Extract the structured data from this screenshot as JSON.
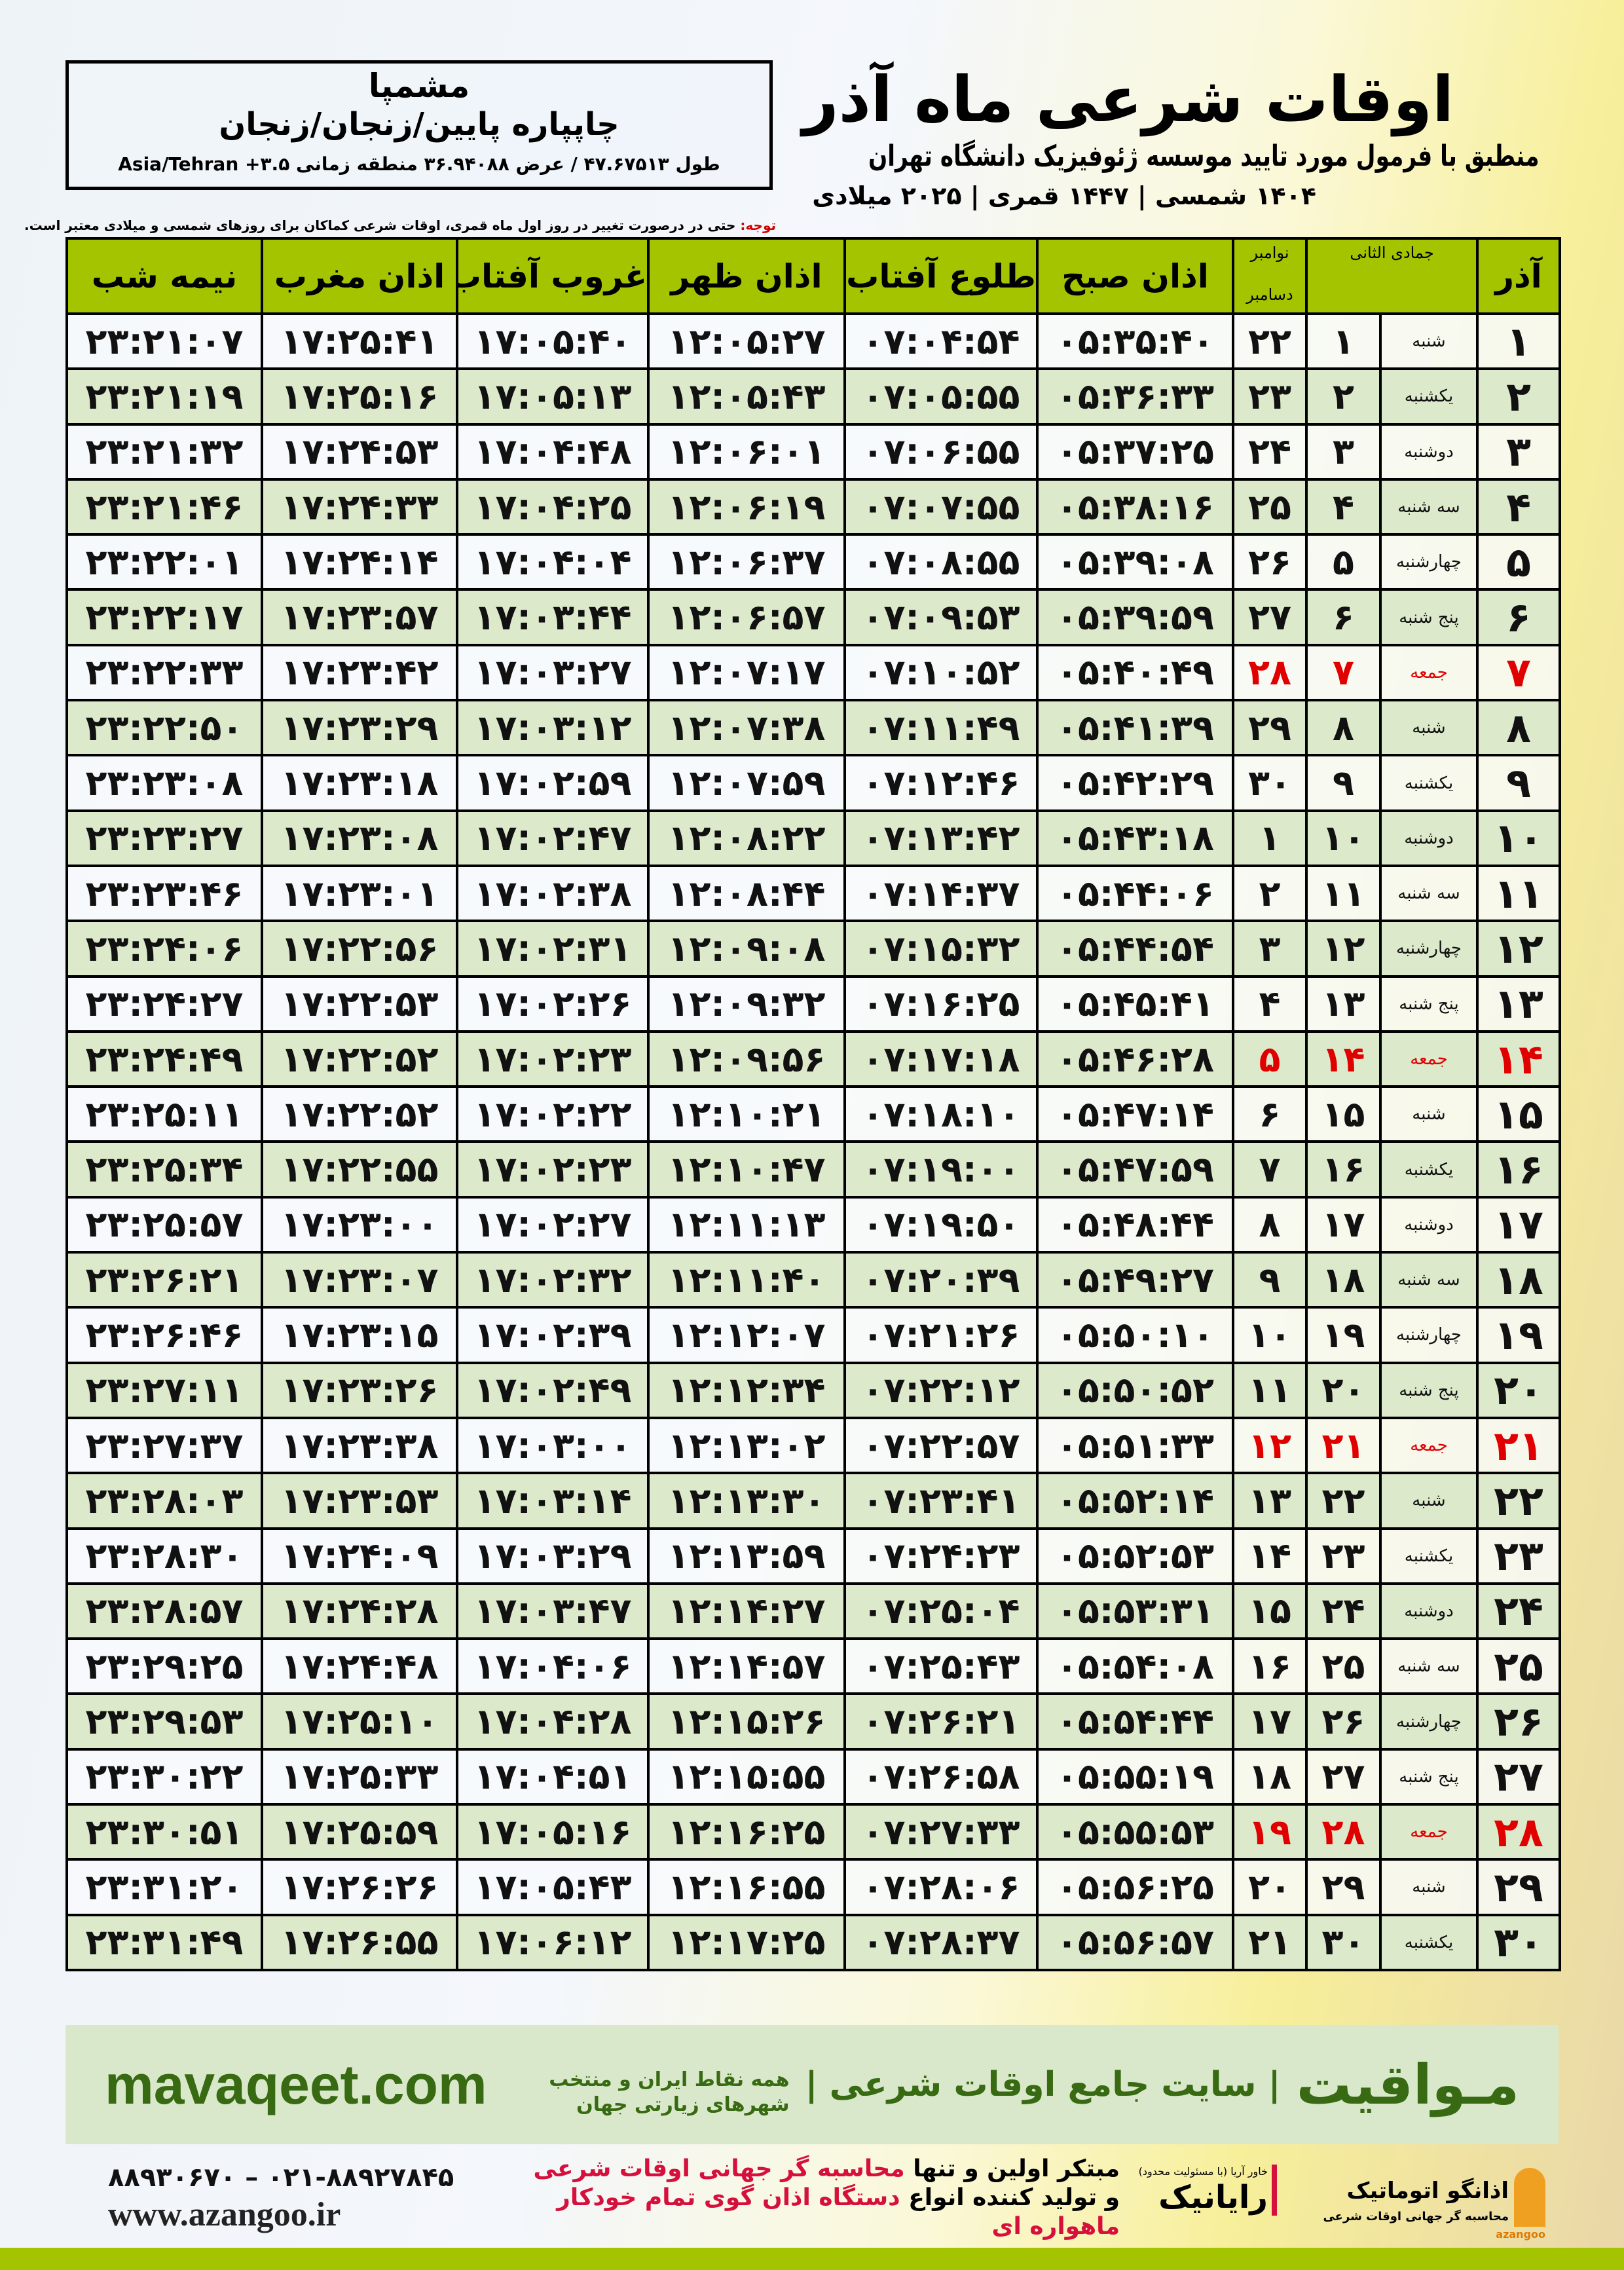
{
  "location": {
    "city": "مشمپا",
    "path": "چاپپاره پایین/زنجان/زنجان",
    "coords": "طول ۴۷.۶۷۵۱۳ / عرض ۳۶.۹۴۰۸۸ منطقه زمانی ۳.۵+ Asia/Tehran"
  },
  "header": {
    "title": "اوقات شرعی ماه آذر",
    "subtitle": "منطبق با فرمول مورد تایید موسسه ژئوفیزیک دانشگاه تهران",
    "years": "۱۴۰۴ شمسی | ۱۴۴۷ قمری | ۲۰۲۵ میلادی"
  },
  "note": {
    "label": "توجه:",
    "text": " حتی در درصورت تغییر در روز اول ماه قمری، اوقات شرعی کماکان برای روزهای شمسی و میلادی معتبر است."
  },
  "table": {
    "headers": {
      "month": "آذر",
      "hijri": "جمادی الثانی",
      "greg_top": "نوامبر",
      "greg_bottom": "دسامبر",
      "fajr": "اذان صبح",
      "sunrise": "طلوع آفتاب",
      "dhuhr": "اذان ظهر",
      "sunset": "غروب آفتاب",
      "maghrib": "اذان مغرب",
      "midnight": "نیمه شب"
    },
    "friday_color": "#e00000",
    "header_color": "#a5c400",
    "rows": [
      [
        "۱",
        "شنبه",
        "۱",
        "۲۲",
        "۰۵:۳۵:۴۰",
        "۰۷:۰۴:۵۴",
        "۱۲:۰۵:۲۷",
        "۱۷:۰۵:۴۰",
        "۱۷:۲۵:۴۱",
        "۲۳:۲۱:۰۷"
      ],
      [
        "۲",
        "یکشنبه",
        "۲",
        "۲۳",
        "۰۵:۳۶:۳۳",
        "۰۷:۰۵:۵۵",
        "۱۲:۰۵:۴۳",
        "۱۷:۰۵:۱۳",
        "۱۷:۲۵:۱۶",
        "۲۳:۲۱:۱۹"
      ],
      [
        "۳",
        "دوشنبه",
        "۳",
        "۲۴",
        "۰۵:۳۷:۲۵",
        "۰۷:۰۶:۵۵",
        "۱۲:۰۶:۰۱",
        "۱۷:۰۴:۴۸",
        "۱۷:۲۴:۵۳",
        "۲۳:۲۱:۳۲"
      ],
      [
        "۴",
        "سه شنبه",
        "۴",
        "۲۵",
        "۰۵:۳۸:۱۶",
        "۰۷:۰۷:۵۵",
        "۱۲:۰۶:۱۹",
        "۱۷:۰۴:۲۵",
        "۱۷:۲۴:۳۳",
        "۲۳:۲۱:۴۶"
      ],
      [
        "۵",
        "چهارشنبه",
        "۵",
        "۲۶",
        "۰۵:۳۹:۰۸",
        "۰۷:۰۸:۵۵",
        "۱۲:۰۶:۳۷",
        "۱۷:۰۴:۰۴",
        "۱۷:۲۴:۱۴",
        "۲۳:۲۲:۰۱"
      ],
      [
        "۶",
        "پنج شنبه",
        "۶",
        "۲۷",
        "۰۵:۳۹:۵۹",
        "۰۷:۰۹:۵۳",
        "۱۲:۰۶:۵۷",
        "۱۷:۰۳:۴۴",
        "۱۷:۲۳:۵۷",
        "۲۳:۲۲:۱۷"
      ],
      [
        "۷",
        "جمعه",
        "۷",
        "۲۸",
        "۰۵:۴۰:۴۹",
        "۰۷:۱۰:۵۲",
        "۱۲:۰۷:۱۷",
        "۱۷:۰۳:۲۷",
        "۱۷:۲۳:۴۲",
        "۲۳:۲۲:۳۳"
      ],
      [
        "۸",
        "شنبه",
        "۸",
        "۲۹",
        "۰۵:۴۱:۳۹",
        "۰۷:۱۱:۴۹",
        "۱۲:۰۷:۳۸",
        "۱۷:۰۳:۱۲",
        "۱۷:۲۳:۲۹",
        "۲۳:۲۲:۵۰"
      ],
      [
        "۹",
        "یکشنبه",
        "۹",
        "۳۰",
        "۰۵:۴۲:۲۹",
        "۰۷:۱۲:۴۶",
        "۱۲:۰۷:۵۹",
        "۱۷:۰۲:۵۹",
        "۱۷:۲۳:۱۸",
        "۲۳:۲۳:۰۸"
      ],
      [
        "۱۰",
        "دوشنبه",
        "۱۰",
        "۱",
        "۰۵:۴۳:۱۸",
        "۰۷:۱۳:۴۲",
        "۱۲:۰۸:۲۲",
        "۱۷:۰۲:۴۷",
        "۱۷:۲۳:۰۸",
        "۲۳:۲۳:۲۷"
      ],
      [
        "۱۱",
        "سه شنبه",
        "۱۱",
        "۲",
        "۰۵:۴۴:۰۶",
        "۰۷:۱۴:۳۷",
        "۱۲:۰۸:۴۴",
        "۱۷:۰۲:۳۸",
        "۱۷:۲۳:۰۱",
        "۲۳:۲۳:۴۶"
      ],
      [
        "۱۲",
        "چهارشنبه",
        "۱۲",
        "۳",
        "۰۵:۴۴:۵۴",
        "۰۷:۱۵:۳۲",
        "۱۲:۰۹:۰۸",
        "۱۷:۰۲:۳۱",
        "۱۷:۲۲:۵۶",
        "۲۳:۲۴:۰۶"
      ],
      [
        "۱۳",
        "پنج شنبه",
        "۱۳",
        "۴",
        "۰۵:۴۵:۴۱",
        "۰۷:۱۶:۲۵",
        "۱۲:۰۹:۳۲",
        "۱۷:۰۲:۲۶",
        "۱۷:۲۲:۵۳",
        "۲۳:۲۴:۲۷"
      ],
      [
        "۱۴",
        "جمعه",
        "۱۴",
        "۵",
        "۰۵:۴۶:۲۸",
        "۰۷:۱۷:۱۸",
        "۱۲:۰۹:۵۶",
        "۱۷:۰۲:۲۳",
        "۱۷:۲۲:۵۲",
        "۲۳:۲۴:۴۹"
      ],
      [
        "۱۵",
        "شنبه",
        "۱۵",
        "۶",
        "۰۵:۴۷:۱۴",
        "۰۷:۱۸:۱۰",
        "۱۲:۱۰:۲۱",
        "۱۷:۰۲:۲۲",
        "۱۷:۲۲:۵۲",
        "۲۳:۲۵:۱۱"
      ],
      [
        "۱۶",
        "یکشنبه",
        "۱۶",
        "۷",
        "۰۵:۴۷:۵۹",
        "۰۷:۱۹:۰۰",
        "۱۲:۱۰:۴۷",
        "۱۷:۰۲:۲۳",
        "۱۷:۲۲:۵۵",
        "۲۳:۲۵:۳۴"
      ],
      [
        "۱۷",
        "دوشنبه",
        "۱۷",
        "۸",
        "۰۵:۴۸:۴۴",
        "۰۷:۱۹:۵۰",
        "۱۲:۱۱:۱۳",
        "۱۷:۰۲:۲۷",
        "۱۷:۲۳:۰۰",
        "۲۳:۲۵:۵۷"
      ],
      [
        "۱۸",
        "سه شنبه",
        "۱۸",
        "۹",
        "۰۵:۴۹:۲۷",
        "۰۷:۲۰:۳۹",
        "۱۲:۱۱:۴۰",
        "۱۷:۰۲:۳۲",
        "۱۷:۲۳:۰۷",
        "۲۳:۲۶:۲۱"
      ],
      [
        "۱۹",
        "چهارشنبه",
        "۱۹",
        "۱۰",
        "۰۵:۵۰:۱۰",
        "۰۷:۲۱:۲۶",
        "۱۲:۱۲:۰۷",
        "۱۷:۰۲:۳۹",
        "۱۷:۲۳:۱۵",
        "۲۳:۲۶:۴۶"
      ],
      [
        "۲۰",
        "پنج شنبه",
        "۲۰",
        "۱۱",
        "۰۵:۵۰:۵۲",
        "۰۷:۲۲:۱۲",
        "۱۲:۱۲:۳۴",
        "۱۷:۰۲:۴۹",
        "۱۷:۲۳:۲۶",
        "۲۳:۲۷:۱۱"
      ],
      [
        "۲۱",
        "جمعه",
        "۲۱",
        "۱۲",
        "۰۵:۵۱:۳۳",
        "۰۷:۲۲:۵۷",
        "۱۲:۱۳:۰۲",
        "۱۷:۰۳:۰۰",
        "۱۷:۲۳:۳۸",
        "۲۳:۲۷:۳۷"
      ],
      [
        "۲۲",
        "شنبه",
        "۲۲",
        "۱۳",
        "۰۵:۵۲:۱۴",
        "۰۷:۲۳:۴۱",
        "۱۲:۱۳:۳۰",
        "۱۷:۰۳:۱۴",
        "۱۷:۲۳:۵۳",
        "۲۳:۲۸:۰۳"
      ],
      [
        "۲۳",
        "یکشنبه",
        "۲۳",
        "۱۴",
        "۰۵:۵۲:۵۳",
        "۰۷:۲۴:۲۳",
        "۱۲:۱۳:۵۹",
        "۱۷:۰۳:۲۹",
        "۱۷:۲۴:۰۹",
        "۲۳:۲۸:۳۰"
      ],
      [
        "۲۴",
        "دوشنبه",
        "۲۴",
        "۱۵",
        "۰۵:۵۳:۳۱",
        "۰۷:۲۵:۰۴",
        "۱۲:۱۴:۲۷",
        "۱۷:۰۳:۴۷",
        "۱۷:۲۴:۲۸",
        "۲۳:۲۸:۵۷"
      ],
      [
        "۲۵",
        "سه شنبه",
        "۲۵",
        "۱۶",
        "۰۵:۵۴:۰۸",
        "۰۷:۲۵:۴۳",
        "۱۲:۱۴:۵۷",
        "۱۷:۰۴:۰۶",
        "۱۷:۲۴:۴۸",
        "۲۳:۲۹:۲۵"
      ],
      [
        "۲۶",
        "چهارشنبه",
        "۲۶",
        "۱۷",
        "۰۵:۵۴:۴۴",
        "۰۷:۲۶:۲۱",
        "۱۲:۱۵:۲۶",
        "۱۷:۰۴:۲۸",
        "۱۷:۲۵:۱۰",
        "۲۳:۲۹:۵۳"
      ],
      [
        "۲۷",
        "پنج شنبه",
        "۲۷",
        "۱۸",
        "۰۵:۵۵:۱۹",
        "۰۷:۲۶:۵۸",
        "۱۲:۱۵:۵۵",
        "۱۷:۰۴:۵۱",
        "۱۷:۲۵:۳۳",
        "۲۳:۳۰:۲۲"
      ],
      [
        "۲۸",
        "جمعه",
        "۲۸",
        "۱۹",
        "۰۵:۵۵:۵۳",
        "۰۷:۲۷:۳۳",
        "۱۲:۱۶:۲۵",
        "۱۷:۰۵:۱۶",
        "۱۷:۲۵:۵۹",
        "۲۳:۳۰:۵۱"
      ],
      [
        "۲۹",
        "شنبه",
        "۲۹",
        "۲۰",
        "۰۵:۵۶:۲۵",
        "۰۷:۲۸:۰۶",
        "۱۲:۱۶:۵۵",
        "۱۷:۰۵:۴۳",
        "۱۷:۲۶:۲۶",
        "۲۳:۳۱:۲۰"
      ],
      [
        "۳۰",
        "یکشنبه",
        "۳۰",
        "۲۱",
        "۰۵:۵۶:۵۷",
        "۰۷:۲۸:۳۷",
        "۱۲:۱۷:۲۵",
        "۱۷:۰۶:۱۲",
        "۱۷:۲۶:۵۵",
        "۲۳:۳۱:۴۹"
      ]
    ]
  },
  "footer": {
    "brand": "مـواقیت",
    "separator": "| سایت جامع اوقات شرعی |",
    "tagline": "همه نقاط ایران و منتخب شهرهای زیارتی جهان",
    "url": "mavaqeet.com"
  },
  "contact": {
    "phone": "۰۲۱-۸۸۹۲۷۸۴۵ – ۸۸۹۳۰۶۷۰",
    "website": "www.azangoo.ir"
  },
  "promo": {
    "line1_a": "مبتکر اولین و تنها ",
    "line1_b": "محاسبه گر جهانی اوقات شرعی",
    "line2_a": "و تولید کننده انواع ",
    "line2_b": "دستگاه اذان گوی تمام خودکار ماهواره ای"
  },
  "logos": {
    "azangoo_name": "اذانگو اتوماتیک",
    "azangoo_sub": "محاسبه گر جهانی اوقات شرعی",
    "azangoo_latin": "azangoo",
    "rayanik_name": "رایانیک",
    "rayanik_sub": "خاور آریا (با مسئولیت محدود)"
  }
}
